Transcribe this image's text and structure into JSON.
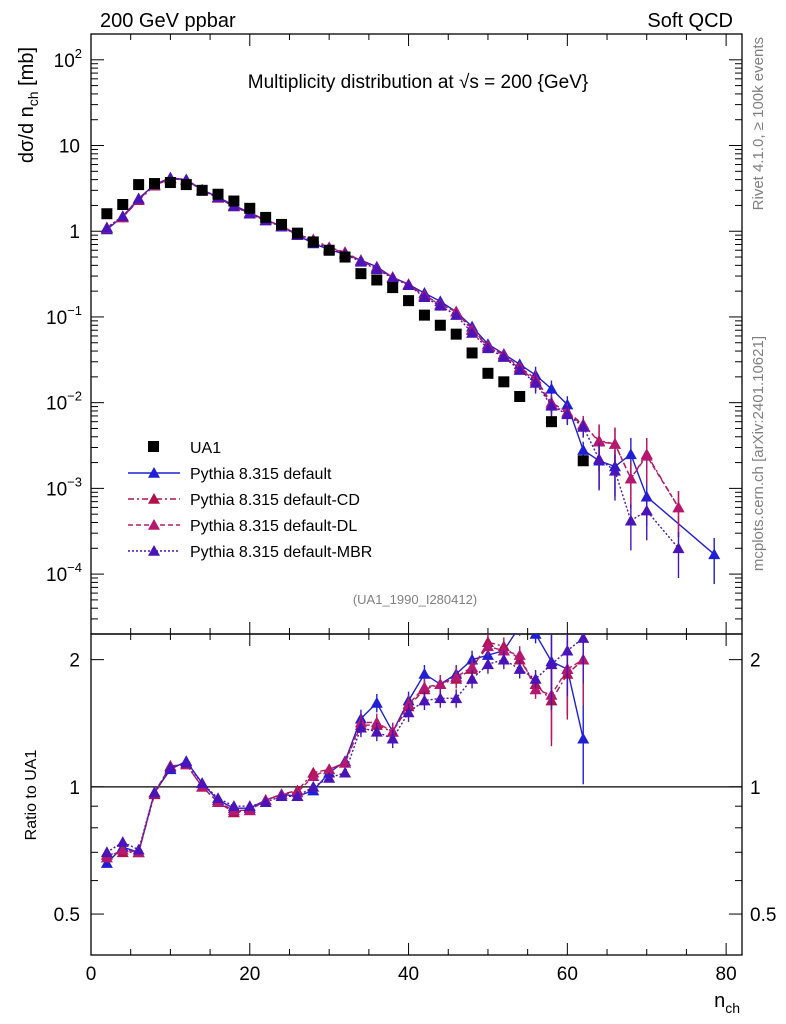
{
  "header": {
    "left": "200 GeV ppbar",
    "right": "Soft QCD",
    "side_top": "Rivet 4.1.0, ≥ 100k events",
    "side_bottom": "mcplots.cern.ch [arXiv:2401.10621]"
  },
  "chart_data": {
    "type": "scatter",
    "title": "Multiplicity distribution at √s = 200 {GeV}",
    "watermark": "(UA1_1990_I280412)",
    "xlabel": "n_ch",
    "ylabel": "dσ/d n_ch [mb]",
    "ratio_ylabel": "Ratio to UA1",
    "xlim": [
      0,
      82
    ],
    "ylim": [
      2e-05,
      200
    ],
    "yscale": "log",
    "ratio_ylim": [
      0.4,
      2.3
    ],
    "x_ticks": [
      0,
      20,
      40,
      60,
      80
    ],
    "main_y_ticks": [
      {
        "v": 0.0001,
        "base": "10",
        "exp": "−4"
      },
      {
        "v": 0.001,
        "base": "10",
        "exp": "−3"
      },
      {
        "v": 0.01,
        "base": "10",
        "exp": "−2"
      },
      {
        "v": 0.1,
        "base": "10",
        "exp": "−1"
      },
      {
        "v": 1,
        "base": "1",
        "exp": ""
      },
      {
        "v": 10,
        "base": "10",
        "exp": ""
      },
      {
        "v": 100,
        "base": "10",
        "exp": "2"
      }
    ],
    "ratio_y_ticks": [
      {
        "v": 0.5,
        "label": "0.5"
      },
      {
        "v": 1,
        "label": "1"
      },
      {
        "v": 2,
        "label": "2"
      }
    ],
    "data": {
      "name": "UA1",
      "color": "#000000",
      "x": [
        2,
        4,
        6,
        8,
        10,
        12,
        14,
        16,
        18,
        20,
        22,
        24,
        26,
        28,
        30,
        32,
        34,
        36,
        38,
        40,
        42,
        44,
        46,
        48,
        50,
        52,
        54,
        58,
        62
      ],
      "y": [
        1.6,
        2.05,
        3.5,
        3.6,
        3.7,
        3.5,
        3.0,
        2.7,
        2.25,
        1.85,
        1.45,
        1.2,
        0.95,
        0.75,
        0.6,
        0.5,
        0.32,
        0.27,
        0.22,
        0.155,
        0.105,
        0.08,
        0.063,
        0.038,
        0.022,
        0.0175,
        0.0118,
        0.006,
        0.0021
      ]
    },
    "series": [
      {
        "name": "Pythia 8.315 default",
        "color": "#1f1fd6",
        "dash": "",
        "x": [
          2,
          4,
          6,
          8,
          10,
          12,
          14,
          16,
          18,
          20,
          22,
          24,
          26,
          28,
          30,
          32,
          34,
          36,
          38,
          40,
          42,
          44,
          46,
          48,
          50,
          52,
          54,
          56,
          58,
          60,
          62,
          64,
          66,
          68,
          70,
          78.5
        ],
        "y": [
          1.05,
          1.48,
          2.4,
          3.5,
          4.2,
          4.0,
          3.05,
          2.5,
          2.0,
          1.65,
          1.35,
          1.15,
          0.9,
          0.72,
          0.61,
          0.54,
          0.46,
          0.385,
          0.29,
          0.24,
          0.19,
          0.152,
          0.115,
          0.077,
          0.048,
          0.037,
          0.028,
          0.021,
          0.0145,
          0.0095,
          0.0028,
          0.0021,
          0.0018,
          0.0025,
          0.0008,
          0.00017
        ],
        "ratio": [
          0.66,
          0.72,
          0.7,
          0.97,
          1.1,
          1.15,
          1.02,
          0.93,
          0.89,
          0.89,
          0.93,
          0.96,
          0.95,
          0.98,
          1.08,
          1.15,
          1.45,
          1.58,
          1.35,
          1.6,
          1.85,
          1.75,
          1.85,
          2.0,
          2.05,
          2.1,
          2.4,
          2.3,
          1.98,
          1.9,
          1.3
        ],
        "ratio_x": [
          2,
          4,
          6,
          8,
          10,
          12,
          14,
          16,
          18,
          20,
          22,
          24,
          26,
          28,
          30,
          32,
          34,
          36,
          38,
          40,
          42,
          44,
          46,
          48,
          50,
          52,
          54,
          56,
          58,
          60,
          62
        ]
      },
      {
        "name": "Pythia 8.315 default-CD",
        "color": "#b0124e",
        "dash": "6,3,2,3",
        "x": [
          2,
          4,
          6,
          8,
          10,
          12,
          14,
          16,
          18,
          20,
          22,
          24,
          26,
          28,
          30,
          32,
          34,
          36,
          38,
          40,
          42,
          44,
          46,
          48,
          50,
          52,
          54,
          56,
          58,
          60,
          62,
          64,
          66,
          68,
          70,
          74
        ],
        "y": [
          1.1,
          1.45,
          2.3,
          3.4,
          4.1,
          3.95,
          3.0,
          2.45,
          1.95,
          1.62,
          1.35,
          1.15,
          0.92,
          0.8,
          0.65,
          0.57,
          0.45,
          0.37,
          0.29,
          0.24,
          0.175,
          0.14,
          0.115,
          0.07,
          0.045,
          0.035,
          0.025,
          0.018,
          0.0095,
          0.0075,
          0.0055,
          0.0036,
          0.0033,
          0.0013,
          0.0025,
          0.0006
        ],
        "ratio": [
          0.69,
          0.7,
          0.7,
          0.96,
          1.12,
          1.13,
          1.0,
          0.92,
          0.87,
          0.88,
          0.93,
          0.96,
          0.98,
          1.08,
          1.1,
          1.14,
          1.4,
          1.4,
          1.35,
          1.55,
          1.7,
          1.75,
          1.8,
          1.9,
          2.2,
          2.15,
          2.0,
          1.75,
          1.6,
          1.85,
          2.0
        ],
        "ratio_x": [
          2,
          4,
          6,
          8,
          10,
          12,
          14,
          16,
          18,
          20,
          22,
          24,
          26,
          28,
          30,
          32,
          34,
          36,
          38,
          40,
          42,
          44,
          46,
          48,
          50,
          52,
          54,
          56,
          58,
          60,
          62
        ]
      },
      {
        "name": "Pythia 8.315 default-DL",
        "color": "#b5186f",
        "dash": "5,3",
        "x": [
          2,
          4,
          6,
          8,
          10,
          12,
          14,
          16,
          18,
          20,
          22,
          24,
          26,
          28,
          30,
          32,
          34,
          36,
          38,
          40,
          42,
          44,
          46,
          48,
          50,
          52,
          54,
          56,
          58,
          60,
          62,
          64,
          66,
          68,
          70,
          74
        ],
        "y": [
          1.08,
          1.45,
          2.35,
          3.45,
          4.15,
          3.95,
          3.0,
          2.45,
          1.95,
          1.62,
          1.35,
          1.15,
          0.92,
          0.78,
          0.64,
          0.56,
          0.45,
          0.37,
          0.29,
          0.24,
          0.18,
          0.14,
          0.115,
          0.072,
          0.046,
          0.036,
          0.026,
          0.019,
          0.01,
          0.0078,
          0.0056,
          0.0035,
          0.0033,
          0.0013,
          0.0024,
          0.0006
        ],
        "ratio": [
          0.68,
          0.71,
          0.7,
          0.97,
          1.12,
          1.13,
          1.0,
          0.92,
          0.88,
          0.88,
          0.93,
          0.96,
          0.97,
          1.06,
          1.1,
          1.14,
          1.42,
          1.42,
          1.35,
          1.57,
          1.72,
          1.75,
          1.82,
          1.92,
          2.15,
          2.1,
          2.05,
          1.7,
          1.65,
          1.9,
          2.0
        ],
        "ratio_x": [
          2,
          4,
          6,
          8,
          10,
          12,
          14,
          16,
          18,
          20,
          22,
          24,
          26,
          28,
          30,
          32,
          34,
          36,
          38,
          40,
          42,
          44,
          46,
          48,
          50,
          52,
          54,
          56,
          58,
          60,
          62
        ]
      },
      {
        "name": "Pythia 8.315 default-MBR",
        "color": "#4a14b8",
        "dash": "2,2",
        "x": [
          2,
          4,
          6,
          8,
          10,
          12,
          14,
          16,
          18,
          20,
          22,
          24,
          26,
          28,
          30,
          32,
          34,
          36,
          38,
          40,
          42,
          44,
          46,
          48,
          50,
          52,
          54,
          56,
          58,
          60,
          62,
          64,
          66,
          68,
          70,
          74
        ],
        "y": [
          1.1,
          1.5,
          2.4,
          3.5,
          4.2,
          4.0,
          3.05,
          2.5,
          1.95,
          1.6,
          1.33,
          1.13,
          0.9,
          0.75,
          0.62,
          0.54,
          0.44,
          0.36,
          0.285,
          0.235,
          0.17,
          0.135,
          0.105,
          0.065,
          0.043,
          0.034,
          0.024,
          0.017,
          0.0092,
          0.0073,
          0.0052,
          0.0022,
          0.0016,
          0.00042,
          0.00055,
          0.0002
        ],
        "ratio": [
          0.7,
          0.74,
          0.71,
          0.97,
          1.11,
          1.14,
          1.02,
          0.94,
          0.9,
          0.9,
          0.92,
          0.95,
          0.95,
          1.0,
          1.05,
          1.08,
          1.38,
          1.35,
          1.3,
          1.5,
          1.6,
          1.62,
          1.62,
          1.8,
          1.95,
          2.0,
          1.9,
          1.8,
          1.95,
          2.1,
          2.25
        ],
        "ratio_x": [
          2,
          4,
          6,
          8,
          10,
          12,
          14,
          16,
          18,
          20,
          22,
          24,
          26,
          28,
          30,
          32,
          34,
          36,
          38,
          40,
          42,
          44,
          46,
          48,
          50,
          52,
          54,
          56,
          58,
          60,
          62
        ]
      }
    ]
  }
}
